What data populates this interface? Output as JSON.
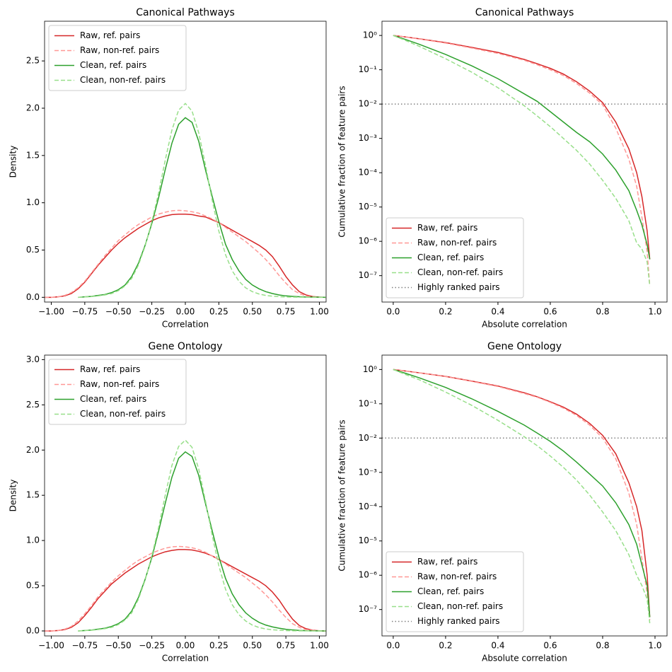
{
  "chart_data": [
    {
      "type": "line",
      "title": "Canonical Pathways",
      "xlabel": "Correlation",
      "ylabel": "Density",
      "x": [
        -1.05,
        -1.0,
        -0.95,
        -0.9,
        -0.85,
        -0.8,
        -0.75,
        -0.7,
        -0.65,
        -0.6,
        -0.55,
        -0.5,
        -0.45,
        -0.4,
        -0.35,
        -0.3,
        -0.25,
        -0.2,
        -0.15,
        -0.1,
        -0.05,
        0,
        0.05,
        0.1,
        0.15,
        0.2,
        0.25,
        0.3,
        0.35,
        0.4,
        0.45,
        0.5,
        0.55,
        0.6,
        0.65,
        0.7,
        0.75,
        0.8,
        0.85,
        0.9,
        0.95,
        1.0,
        1.05
      ],
      "series": [
        {
          "name": "Raw, ref. pairs",
          "color": "#d62728",
          "style": "solid",
          "values": [
            0,
            0,
            0.005,
            0.015,
            0.04,
            0.09,
            0.16,
            0.25,
            0.34,
            0.42,
            0.5,
            0.57,
            0.63,
            0.68,
            0.73,
            0.77,
            0.81,
            0.84,
            0.86,
            0.875,
            0.88,
            0.88,
            0.875,
            0.86,
            0.85,
            0.82,
            0.79,
            0.75,
            0.71,
            0.67,
            0.63,
            0.59,
            0.55,
            0.5,
            0.43,
            0.33,
            0.22,
            0.13,
            0.06,
            0.025,
            0.008,
            0.002,
            0
          ]
        },
        {
          "name": "Raw, non-ref. pairs",
          "color": "#ff9896",
          "style": "dashed",
          "values": [
            0,
            0,
            0.005,
            0.02,
            0.05,
            0.1,
            0.17,
            0.26,
            0.35,
            0.44,
            0.52,
            0.6,
            0.66,
            0.72,
            0.77,
            0.81,
            0.85,
            0.88,
            0.9,
            0.915,
            0.92,
            0.915,
            0.905,
            0.89,
            0.86,
            0.83,
            0.79,
            0.74,
            0.69,
            0.64,
            0.59,
            0.53,
            0.47,
            0.4,
            0.32,
            0.23,
            0.15,
            0.08,
            0.04,
            0.015,
            0.005,
            0.001,
            0
          ]
        },
        {
          "name": "Clean, ref. pairs",
          "color": "#2ca02c",
          "style": "solid",
          "values": [
            null,
            null,
            null,
            null,
            null,
            0,
            0.005,
            0.01,
            0.02,
            0.03,
            0.05,
            0.08,
            0.13,
            0.22,
            0.36,
            0.55,
            0.78,
            1.05,
            1.35,
            1.63,
            1.83,
            1.9,
            1.85,
            1.65,
            1.35,
            1.07,
            0.8,
            0.56,
            0.4,
            0.28,
            0.19,
            0.13,
            0.09,
            0.06,
            0.04,
            0.025,
            0.015,
            0.01,
            0.006,
            0.003,
            0.002,
            0.001,
            0
          ]
        },
        {
          "name": "Clean, non-ref. pairs",
          "color": "#98df8a",
          "style": "dashed",
          "values": [
            null,
            null,
            null,
            null,
            null,
            0,
            0.004,
            0.008,
            0.015,
            0.025,
            0.04,
            0.07,
            0.12,
            0.2,
            0.34,
            0.54,
            0.8,
            1.1,
            1.45,
            1.77,
            1.98,
            2.05,
            1.97,
            1.74,
            1.4,
            1.03,
            0.7,
            0.45,
            0.28,
            0.17,
            0.1,
            0.06,
            0.035,
            0.02,
            0.012,
            0.007,
            0.004,
            0.002,
            0.001,
            0.001,
            0,
            0,
            0
          ]
        }
      ],
      "xlim": [
        -1.05,
        1.05
      ],
      "ylim": [
        -0.05,
        2.92
      ],
      "xticks": [
        {
          "value": -1,
          "label": "−1.00"
        },
        {
          "value": -0.75,
          "label": "−0.75"
        },
        {
          "value": -0.5,
          "label": "−0.50"
        },
        {
          "value": -0.25,
          "label": "−0.25"
        },
        {
          "value": 0,
          "label": "0.00"
        },
        0.25,
        {
          "value": 0.5,
          "label": "0.50"
        },
        0.75,
        {
          "value": 1,
          "label": "1.00"
        }
      ],
      "yticks": [
        {
          "value": 0,
          "label": "0.0"
        },
        0.5,
        {
          "value": 1,
          "label": "1.0"
        },
        1.5,
        {
          "value": 2,
          "label": "2.0"
        },
        2.5
      ],
      "legend": "upper left"
    },
    {
      "type": "line",
      "title": "Canonical Pathways",
      "xlabel": "Absolute correlation",
      "ylabel": "Cumulative fraction of feature pairs",
      "yscale": "log",
      "x": [
        0,
        0.05,
        0.1,
        0.2,
        0.3,
        0.4,
        0.5,
        0.55,
        0.6,
        0.65,
        0.7,
        0.75,
        0.8,
        0.85,
        0.9,
        0.93,
        0.95,
        0.97,
        0.98
      ],
      "series": [
        {
          "name": "Raw, ref. pairs",
          "color": "#d62728",
          "style": "solid",
          "values": [
            1,
            0.9,
            0.8,
            0.62,
            0.45,
            0.32,
            0.2,
            0.15,
            0.11,
            0.075,
            0.045,
            0.024,
            0.011,
            0.003,
            0.0005,
            0.0001,
            2e-05,
            2e-06,
            3e-07
          ]
        },
        {
          "name": "Raw, non-ref. pairs",
          "color": "#ff9896",
          "style": "dashed",
          "values": [
            1,
            0.9,
            0.79,
            0.6,
            0.43,
            0.3,
            0.19,
            0.14,
            0.1,
            0.068,
            0.04,
            0.021,
            0.0095,
            0.002,
            0.00025,
            4e-05,
            5e-06,
            5e-07,
            5e-08
          ]
        },
        {
          "name": "Clean, ref. pairs",
          "color": "#2ca02c",
          "style": "solid",
          "values": [
            1,
            0.75,
            0.55,
            0.28,
            0.13,
            0.055,
            0.02,
            0.012,
            0.006,
            0.003,
            0.0015,
            0.0008,
            0.00035,
            0.00012,
            3e-05,
            8e-06,
            3e-06,
            8e-07,
            3e-07
          ]
        },
        {
          "name": "Clean, non-ref. pairs",
          "color": "#98df8a",
          "style": "dashed",
          "values": [
            1,
            0.7,
            0.48,
            0.21,
            0.085,
            0.03,
            0.009,
            0.0045,
            0.0022,
            0.001,
            0.00045,
            0.00018,
            6e-05,
            1.8e-05,
            4e-06,
            9e-07,
            6e-07,
            2.5e-07,
            5e-08
          ]
        }
      ],
      "hline": {
        "name": "Highly ranked pairs",
        "value": 0.01,
        "color": "#808080",
        "style": "dotted"
      },
      "xlim": [
        -0.043,
        1.046
      ],
      "ylim": [
        1.7e-08,
        2.6
      ],
      "xticks": [
        {
          "value": 0,
          "label": "0.0"
        },
        0.2,
        0.4,
        0.6,
        0.8,
        {
          "value": 1,
          "label": "1.0"
        }
      ],
      "yticks": [
        {
          "value": 1,
          "label": "10⁰"
        },
        {
          "value": 0.1,
          "label": "10⁻¹"
        },
        {
          "value": 0.01,
          "label": "10⁻²"
        },
        {
          "value": 0.001,
          "label": "10⁻³"
        },
        {
          "value": 0.0001,
          "label": "10⁻⁴"
        },
        {
          "value": 1e-05,
          "label": "10⁻⁵"
        },
        {
          "value": 1e-06,
          "label": "10⁻⁶"
        },
        {
          "value": 1e-07,
          "label": "10⁻⁷"
        }
      ],
      "legend": "lower left"
    },
    {
      "type": "line",
      "title": "Gene Ontology",
      "xlabel": "Correlation",
      "ylabel": "Density",
      "x": [
        -1.05,
        -1.0,
        -0.95,
        -0.9,
        -0.85,
        -0.8,
        -0.75,
        -0.7,
        -0.65,
        -0.6,
        -0.55,
        -0.5,
        -0.45,
        -0.4,
        -0.35,
        -0.3,
        -0.25,
        -0.2,
        -0.15,
        -0.1,
        -0.05,
        0,
        0.05,
        0.1,
        0.15,
        0.2,
        0.25,
        0.3,
        0.35,
        0.4,
        0.45,
        0.5,
        0.55,
        0.6,
        0.65,
        0.7,
        0.75,
        0.8,
        0.85,
        0.9,
        0.95,
        1.0,
        1.05
      ],
      "series": [
        {
          "name": "Raw, ref. pairs",
          "color": "#d62728",
          "style": "solid",
          "values": [
            0,
            0,
            0.005,
            0.015,
            0.04,
            0.09,
            0.17,
            0.26,
            0.36,
            0.44,
            0.52,
            0.58,
            0.64,
            0.69,
            0.74,
            0.78,
            0.82,
            0.85,
            0.875,
            0.89,
            0.9,
            0.9,
            0.895,
            0.88,
            0.86,
            0.83,
            0.79,
            0.75,
            0.71,
            0.67,
            0.63,
            0.59,
            0.55,
            0.5,
            0.43,
            0.34,
            0.23,
            0.13,
            0.06,
            0.025,
            0.008,
            0.002,
            0
          ]
        },
        {
          "name": "Raw, non-ref. pairs",
          "color": "#ff9896",
          "style": "dashed",
          "values": [
            0,
            0,
            0.005,
            0.02,
            0.05,
            0.11,
            0.19,
            0.28,
            0.38,
            0.46,
            0.54,
            0.61,
            0.67,
            0.73,
            0.78,
            0.82,
            0.86,
            0.89,
            0.915,
            0.93,
            0.935,
            0.93,
            0.92,
            0.9,
            0.87,
            0.83,
            0.79,
            0.74,
            0.69,
            0.64,
            0.59,
            0.53,
            0.47,
            0.4,
            0.32,
            0.23,
            0.15,
            0.08,
            0.04,
            0.015,
            0.005,
            0.001,
            0
          ]
        },
        {
          "name": "Clean, ref. pairs",
          "color": "#2ca02c",
          "style": "solid",
          "values": [
            null,
            null,
            null,
            null,
            null,
            0,
            0.005,
            0.01,
            0.02,
            0.03,
            0.05,
            0.08,
            0.13,
            0.22,
            0.37,
            0.57,
            0.81,
            1.1,
            1.41,
            1.7,
            1.91,
            1.98,
            1.93,
            1.72,
            1.41,
            1.11,
            0.82,
            0.58,
            0.41,
            0.29,
            0.2,
            0.14,
            0.095,
            0.065,
            0.045,
            0.03,
            0.018,
            0.011,
            0.006,
            0.003,
            0.002,
            0.001,
            0
          ]
        },
        {
          "name": "Clean, non-ref. pairs",
          "color": "#98df8a",
          "style": "dashed",
          "values": [
            null,
            null,
            null,
            null,
            null,
            0,
            0.004,
            0.008,
            0.015,
            0.025,
            0.04,
            0.07,
            0.12,
            0.2,
            0.35,
            0.56,
            0.83,
            1.14,
            1.5,
            1.83,
            2.04,
            2.11,
            2.03,
            1.79,
            1.44,
            1.06,
            0.72,
            0.46,
            0.29,
            0.18,
            0.11,
            0.065,
            0.038,
            0.022,
            0.013,
            0.008,
            0.004,
            0.002,
            0.001,
            0.001,
            0,
            0,
            0
          ]
        }
      ],
      "xlim": [
        -1.05,
        1.05
      ],
      "ylim": [
        -0.055,
        3.05
      ],
      "xticks": [
        {
          "value": -1,
          "label": "−1.00"
        },
        {
          "value": -0.75,
          "label": "−0.75"
        },
        {
          "value": -0.5,
          "label": "−0.50"
        },
        {
          "value": -0.25,
          "label": "−0.25"
        },
        {
          "value": 0,
          "label": "0.00"
        },
        0.25,
        {
          "value": 0.5,
          "label": "0.50"
        },
        0.75,
        {
          "value": 1,
          "label": "1.00"
        }
      ],
      "yticks": [
        {
          "value": 0,
          "label": "0.0"
        },
        0.5,
        {
          "value": 1,
          "label": "1.0"
        },
        1.5,
        {
          "value": 2,
          "label": "2.0"
        },
        2.5,
        {
          "value": 3,
          "label": "3.0"
        }
      ],
      "legend": "upper left"
    },
    {
      "type": "line",
      "title": "Gene Ontology",
      "xlabel": "Absolute correlation",
      "ylabel": "Cumulative fraction of feature pairs",
      "yscale": "log",
      "x": [
        0,
        0.05,
        0.1,
        0.2,
        0.3,
        0.4,
        0.5,
        0.55,
        0.6,
        0.65,
        0.7,
        0.75,
        0.8,
        0.85,
        0.9,
        0.93,
        0.95,
        0.97,
        0.98
      ],
      "series": [
        {
          "name": "Raw, ref. pairs",
          "color": "#d62728",
          "style": "solid",
          "values": [
            1,
            0.9,
            0.8,
            0.63,
            0.46,
            0.33,
            0.21,
            0.16,
            0.115,
            0.08,
            0.05,
            0.027,
            0.012,
            0.0035,
            0.0005,
            0.0001,
            2e-05,
            1e-06,
            6e-08
          ]
        },
        {
          "name": "Raw, non-ref. pairs",
          "color": "#ff9896",
          "style": "dashed",
          "values": [
            1,
            0.9,
            0.8,
            0.62,
            0.45,
            0.32,
            0.2,
            0.155,
            0.11,
            0.075,
            0.046,
            0.024,
            0.01,
            0.0025,
            0.00025,
            3e-05,
            3e-06,
            3e-07,
            5e-08
          ]
        },
        {
          "name": "Clean, ref. pairs",
          "color": "#2ca02c",
          "style": "solid",
          "values": [
            1,
            0.76,
            0.57,
            0.3,
            0.14,
            0.06,
            0.024,
            0.014,
            0.008,
            0.0042,
            0.002,
            0.0009,
            0.0004,
            0.00013,
            3e-05,
            8e-06,
            2e-06,
            5e-07,
            6e-08
          ]
        },
        {
          "name": "Clean, non-ref. pairs",
          "color": "#98df8a",
          "style": "dashed",
          "values": [
            1,
            0.7,
            0.5,
            0.22,
            0.09,
            0.033,
            0.011,
            0.006,
            0.003,
            0.0014,
            0.0006,
            0.00022,
            7e-05,
            2e-05,
            4e-06,
            1e-06,
            5e-07,
            2e-07,
            4e-08
          ]
        }
      ],
      "hline": {
        "name": "Highly ranked pairs",
        "value": 0.01,
        "color": "#808080",
        "style": "dotted"
      },
      "xlim": [
        -0.043,
        1.046
      ],
      "ylim": [
        1.7e-08,
        2.63
      ],
      "xticks": [
        {
          "value": 0,
          "label": "0.0"
        },
        0.2,
        0.4,
        0.6,
        0.8,
        {
          "value": 1,
          "label": "1.0"
        }
      ],
      "yticks": [
        {
          "value": 1,
          "label": "10⁰"
        },
        {
          "value": 0.1,
          "label": "10⁻¹"
        },
        {
          "value": 0.01,
          "label": "10⁻²"
        },
        {
          "value": 0.001,
          "label": "10⁻³"
        },
        {
          "value": 0.0001,
          "label": "10⁻⁴"
        },
        {
          "value": 1e-05,
          "label": "10⁻⁵"
        },
        {
          "value": 1e-06,
          "label": "10⁻⁶"
        },
        {
          "value": 1e-07,
          "label": "10⁻⁷"
        }
      ],
      "legend": "lower left"
    }
  ]
}
